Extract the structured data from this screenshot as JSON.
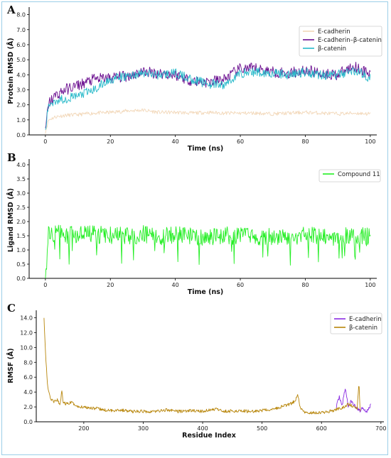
{
  "chart_data": [
    {
      "panel": "A",
      "type": "line",
      "xlabel": "Time (ns)",
      "ylabel": "Protein RMSD (Å)",
      "xlim": [
        -5,
        102
      ],
      "ylim": [
        0,
        8.5
      ],
      "xticks": [
        0,
        20,
        40,
        60,
        80,
        100
      ],
      "yticks": [
        0.0,
        1.0,
        2.0,
        3.0,
        4.0,
        5.0,
        6.0,
        7.0,
        8.0
      ],
      "grid": false,
      "legend_position": "top-right",
      "series": [
        {
          "name": "E-cadherin",
          "color": "#f2d7b8",
          "x": [
            0,
            1,
            3,
            6,
            10,
            15,
            20,
            25,
            30,
            35,
            40,
            45,
            50,
            55,
            60,
            65,
            70,
            75,
            80,
            85,
            90,
            95,
            100
          ],
          "y": [
            0.2,
            1.0,
            1.2,
            1.3,
            1.35,
            1.45,
            1.5,
            1.6,
            1.65,
            1.5,
            1.5,
            1.45,
            1.5,
            1.45,
            1.45,
            1.45,
            1.4,
            1.45,
            1.5,
            1.45,
            1.4,
            1.45,
            1.4
          ]
        },
        {
          "name": "E-cadherin–β-catenin",
          "color": "#6a0d8f",
          "x": [
            0,
            1,
            3,
            6,
            10,
            15,
            20,
            25,
            30,
            35,
            40,
            45,
            50,
            55,
            60,
            65,
            70,
            75,
            80,
            85,
            90,
            95,
            100
          ],
          "y": [
            0.3,
            2.1,
            2.6,
            3.0,
            3.3,
            3.7,
            3.8,
            3.9,
            4.2,
            4.1,
            4.0,
            3.6,
            3.5,
            3.7,
            4.4,
            4.4,
            4.2,
            4.1,
            4.3,
            4.1,
            4.0,
            4.6,
            4.0
          ]
        },
        {
          "name": "β-catenin",
          "color": "#26b9c9",
          "x": [
            0,
            1,
            3,
            6,
            10,
            15,
            20,
            25,
            30,
            35,
            40,
            45,
            50,
            55,
            60,
            65,
            70,
            75,
            80,
            85,
            90,
            95,
            100
          ],
          "y": [
            0.3,
            2.0,
            2.3,
            2.4,
            2.6,
            3.0,
            3.7,
            3.9,
            4.1,
            4.0,
            4.1,
            3.7,
            3.4,
            3.3,
            4.1,
            4.2,
            4.1,
            4.0,
            4.2,
            4.0,
            4.0,
            4.3,
            3.8
          ]
        }
      ]
    },
    {
      "panel": "B",
      "type": "line",
      "xlabel": "Time (ns)",
      "ylabel": "Ligand RMSD (Å)",
      "xlim": [
        -5,
        102
      ],
      "ylim": [
        0,
        4.2
      ],
      "xticks": [
        0,
        20,
        40,
        60,
        80,
        100
      ],
      "yticks": [
        0.0,
        0.5,
        1.0,
        1.5,
        2.0,
        2.5,
        3.0,
        3.5,
        4.0
      ],
      "grid": false,
      "legend_position": "top-right",
      "series": [
        {
          "name": "Compound 11",
          "color": "#22ee22",
          "x": [
            0,
            1,
            5,
            10,
            15,
            20,
            25,
            30,
            35,
            40,
            45,
            50,
            55,
            60,
            65,
            70,
            75,
            80,
            85,
            90,
            95,
            100
          ],
          "y": [
            0.0,
            1.6,
            1.55,
            1.5,
            1.55,
            1.5,
            1.5,
            1.55,
            1.5,
            1.5,
            1.5,
            1.45,
            1.5,
            1.5,
            1.45,
            1.5,
            1.45,
            1.5,
            1.5,
            1.45,
            1.5,
            1.45
          ]
        }
      ]
    },
    {
      "panel": "C",
      "type": "line",
      "xlabel": "Residue Index",
      "ylabel": "RMSF (Å)",
      "xlim": [
        120,
        705
      ],
      "ylim": [
        0,
        15
      ],
      "xticks": [
        200,
        300,
        400,
        500,
        600,
        700
      ],
      "yticks": [
        0.0,
        2.0,
        4.0,
        6.0,
        8.0,
        10.0,
        12.0,
        14.0
      ],
      "grid": false,
      "legend_position": "top-right",
      "series": [
        {
          "name": "E-cadherin",
          "color": "#8a2be2",
          "x": [
            625,
            630,
            635,
            640,
            645,
            650,
            655,
            660,
            665,
            670,
            675,
            680,
            683
          ],
          "y": [
            2.0,
            3.4,
            2.2,
            4.6,
            2.0,
            2.8,
            2.2,
            1.8,
            1.5,
            2.0,
            1.3,
            1.8,
            2.4
          ]
        },
        {
          "name": "β-catenin",
          "color": "#b8860b",
          "x": [
            133,
            135,
            138,
            140,
            145,
            150,
            155,
            160,
            163,
            165,
            170,
            180,
            190,
            200,
            220,
            240,
            260,
            280,
            300,
            320,
            340,
            360,
            380,
            400,
            420,
            440,
            460,
            480,
            500,
            520,
            540,
            550,
            555,
            560,
            565,
            570,
            580,
            600,
            620,
            630,
            640,
            645,
            650,
            655,
            660,
            663,
            665
          ],
          "y": [
            14.1,
            10.0,
            6.0,
            4.3,
            3.0,
            2.6,
            3.0,
            2.2,
            4.3,
            2.6,
            2.4,
            2.6,
            2.0,
            2.0,
            1.8,
            1.5,
            1.6,
            1.4,
            1.4,
            1.4,
            1.6,
            1.4,
            1.5,
            1.4,
            1.7,
            1.4,
            1.5,
            1.4,
            1.5,
            1.7,
            2.2,
            2.5,
            2.8,
            3.5,
            1.8,
            1.3,
            1.2,
            1.2,
            1.5,
            1.8,
            2.0,
            2.4,
            2.2,
            2.0,
            1.8,
            5.3,
            1.6
          ]
        }
      ]
    }
  ]
}
